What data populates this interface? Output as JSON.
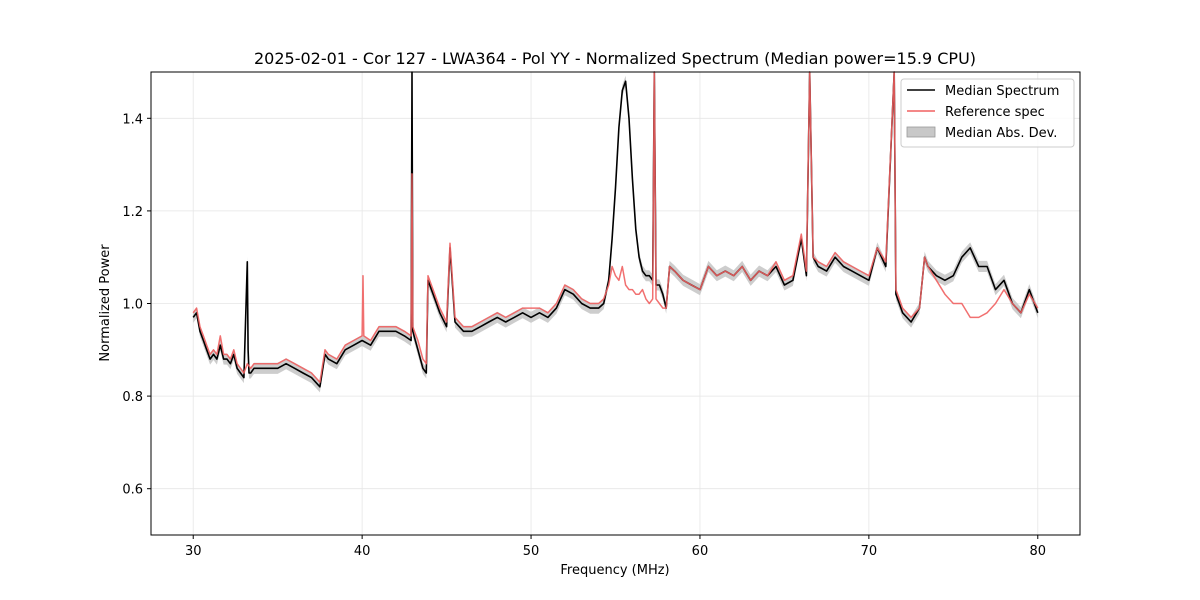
{
  "chart_data": {
    "type": "line",
    "title": "2025-02-01 - Cor 127 - LWA364 - Pol YY - Normalized Spectrum (Median power=15.9 CPU)",
    "xlabel": "Frequency (MHz)",
    "ylabel": "Normalized Power",
    "xlim": [
      27.5,
      82.5
    ],
    "ylim": [
      0.5,
      1.5
    ],
    "xticks": [
      30,
      40,
      50,
      60,
      70,
      80
    ],
    "yticks": [
      0.6,
      0.8,
      1.0,
      1.2,
      1.4
    ],
    "xtick_labels": [
      "30",
      "40",
      "50",
      "60",
      "70",
      "80"
    ],
    "ytick_labels": [
      "0.6",
      "0.8",
      "1.0",
      "1.2",
      "1.4"
    ],
    "grid": true,
    "legend_position": "top-right",
    "legend": [
      {
        "label": "Median Spectrum",
        "kind": "line",
        "color": "#000000"
      },
      {
        "label": "Reference spec",
        "kind": "line",
        "color": "#f06060"
      },
      {
        "label": "Median Abs. Dev.",
        "kind": "patch",
        "color": "#c8c8c8"
      }
    ],
    "series": [
      {
        "name": "Median Spectrum",
        "color": "#000000",
        "x": [
          30.0,
          30.2,
          30.4,
          30.6,
          30.8,
          31.0,
          31.2,
          31.4,
          31.6,
          31.8,
          32.0,
          32.2,
          32.4,
          32.6,
          32.8,
          33.0,
          33.2,
          33.25,
          33.3,
          33.4,
          33.6,
          34.0,
          34.5,
          35.0,
          35.5,
          36.0,
          36.5,
          37.0,
          37.5,
          37.8,
          38.0,
          38.5,
          39.0,
          39.5,
          40.0,
          40.5,
          41.0,
          41.5,
          42.0,
          42.5,
          42.9,
          42.95,
          43.0,
          43.3,
          43.6,
          43.8,
          43.9,
          44.2,
          44.6,
          45.0,
          45.2,
          45.5,
          46.0,
          46.5,
          47.0,
          47.5,
          48.0,
          48.5,
          49.0,
          49.5,
          50.0,
          50.5,
          51.0,
          51.5,
          52.0,
          52.5,
          53.0,
          53.5,
          54.0,
          54.3,
          54.6,
          54.8,
          55.0,
          55.2,
          55.4,
          55.6,
          55.8,
          56.0,
          56.2,
          56.4,
          56.6,
          56.8,
          57.0,
          57.2,
          57.3,
          57.4,
          57.6,
          57.8,
          58.0,
          58.2,
          58.5,
          59.0,
          59.5,
          60.0,
          60.5,
          61.0,
          61.5,
          62.0,
          62.5,
          63.0,
          63.5,
          64.0,
          64.5,
          65.0,
          65.5,
          66.0,
          66.3,
          66.5,
          66.7,
          67.0,
          67.5,
          68.0,
          68.5,
          69.0,
          69.5,
          70.0,
          70.5,
          71.0,
          71.5,
          71.6,
          71.8,
          72.0,
          72.5,
          73.0,
          73.3,
          73.5,
          74.0,
          74.5,
          75.0,
          75.5,
          76.0,
          76.5,
          77.0,
          77.5,
          78.0,
          78.5,
          79.0,
          79.5,
          80.0
        ],
        "y": [
          0.97,
          0.98,
          0.94,
          0.92,
          0.9,
          0.88,
          0.89,
          0.88,
          0.91,
          0.88,
          0.88,
          0.87,
          0.89,
          0.86,
          0.85,
          0.84,
          1.09,
          0.9,
          0.85,
          0.85,
          0.86,
          0.86,
          0.86,
          0.86,
          0.87,
          0.86,
          0.85,
          0.84,
          0.82,
          0.89,
          0.88,
          0.87,
          0.9,
          0.91,
          0.92,
          0.91,
          0.94,
          0.94,
          0.94,
          0.93,
          0.92,
          1.5,
          0.94,
          0.9,
          0.86,
          0.85,
          1.05,
          1.02,
          0.98,
          0.95,
          1.12,
          0.96,
          0.94,
          0.94,
          0.95,
          0.96,
          0.97,
          0.96,
          0.97,
          0.98,
          0.97,
          0.98,
          0.97,
          0.99,
          1.03,
          1.02,
          1.0,
          0.99,
          0.99,
          1.0,
          1.05,
          1.14,
          1.25,
          1.38,
          1.46,
          1.48,
          1.4,
          1.27,
          1.16,
          1.1,
          1.07,
          1.06,
          1.06,
          1.05,
          1.5,
          1.04,
          1.04,
          1.02,
          0.99,
          1.08,
          1.07,
          1.05,
          1.04,
          1.03,
          1.08,
          1.06,
          1.07,
          1.06,
          1.08,
          1.05,
          1.07,
          1.06,
          1.08,
          1.04,
          1.05,
          1.14,
          1.06,
          1.5,
          1.1,
          1.08,
          1.07,
          1.1,
          1.08,
          1.07,
          1.06,
          1.05,
          1.12,
          1.08,
          1.5,
          1.02,
          1.0,
          0.98,
          0.96,
          0.99,
          1.1,
          1.08,
          1.06,
          1.05,
          1.06,
          1.1,
          1.12,
          1.08,
          1.08,
          1.03,
          1.05,
          1.0,
          0.98,
          1.03,
          0.98
        ]
      },
      {
        "name": "Reference spec",
        "color": "#f06060",
        "x": [
          30.0,
          30.2,
          30.4,
          30.6,
          30.8,
          31.0,
          31.2,
          31.4,
          31.6,
          31.8,
          32.0,
          32.2,
          32.4,
          32.6,
          32.8,
          33.0,
          33.2,
          33.4,
          33.6,
          34.0,
          34.5,
          35.0,
          35.5,
          36.0,
          36.5,
          37.0,
          37.5,
          37.8,
          38.0,
          38.5,
          39.0,
          39.5,
          40.0,
          40.05,
          40.1,
          40.5,
          41.0,
          41.5,
          42.0,
          42.5,
          42.9,
          42.95,
          43.0,
          43.3,
          43.6,
          43.8,
          43.9,
          44.2,
          44.6,
          45.0,
          45.2,
          45.5,
          46.0,
          46.5,
          47.0,
          47.5,
          48.0,
          48.5,
          49.0,
          49.5,
          50.0,
          50.5,
          51.0,
          51.5,
          52.0,
          52.5,
          53.0,
          53.5,
          54.0,
          54.3,
          54.6,
          54.8,
          55.0,
          55.2,
          55.4,
          55.6,
          55.8,
          56.0,
          56.2,
          56.4,
          56.6,
          56.8,
          57.0,
          57.2,
          57.3,
          57.4,
          57.6,
          57.8,
          58.0,
          58.2,
          58.5,
          59.0,
          59.5,
          60.0,
          60.5,
          61.0,
          61.5,
          62.0,
          62.5,
          63.0,
          63.5,
          64.0,
          64.5,
          65.0,
          65.5,
          66.0,
          66.3,
          66.5,
          66.7,
          67.0,
          67.5,
          68.0,
          68.5,
          69.0,
          69.5,
          70.0,
          70.5,
          71.0,
          71.5,
          71.6,
          71.8,
          72.0,
          72.5,
          73.0,
          73.3,
          73.5,
          74.0,
          74.5,
          75.0,
          75.5,
          76.0,
          76.5,
          77.0,
          77.5,
          78.0,
          78.5,
          79.0,
          79.5,
          80.0
        ],
        "y": [
          0.98,
          0.99,
          0.95,
          0.93,
          0.91,
          0.89,
          0.9,
          0.89,
          0.93,
          0.89,
          0.89,
          0.88,
          0.9,
          0.87,
          0.86,
          0.85,
          0.87,
          0.86,
          0.87,
          0.87,
          0.87,
          0.87,
          0.88,
          0.87,
          0.86,
          0.85,
          0.83,
          0.9,
          0.89,
          0.88,
          0.91,
          0.92,
          0.93,
          1.06,
          0.93,
          0.92,
          0.95,
          0.95,
          0.95,
          0.94,
          0.93,
          1.28,
          0.95,
          0.92,
          0.88,
          0.87,
          1.06,
          1.03,
          0.99,
          0.96,
          1.13,
          0.97,
          0.95,
          0.95,
          0.96,
          0.97,
          0.98,
          0.97,
          0.98,
          0.99,
          0.99,
          0.99,
          0.98,
          1.0,
          1.04,
          1.03,
          1.01,
          1.0,
          1.0,
          1.01,
          1.04,
          1.08,
          1.06,
          1.05,
          1.08,
          1.04,
          1.03,
          1.03,
          1.02,
          1.02,
          1.03,
          1.01,
          1.0,
          1.01,
          1.5,
          1.01,
          1.0,
          0.99,
          0.99,
          1.08,
          1.07,
          1.05,
          1.04,
          1.03,
          1.08,
          1.06,
          1.07,
          1.06,
          1.08,
          1.05,
          1.07,
          1.06,
          1.09,
          1.05,
          1.06,
          1.15,
          1.07,
          1.5,
          1.1,
          1.09,
          1.08,
          1.11,
          1.09,
          1.08,
          1.07,
          1.06,
          1.12,
          1.09,
          1.5,
          1.03,
          1.01,
          0.99,
          0.97,
          0.99,
          1.1,
          1.08,
          1.05,
          1.02,
          1.0,
          1.0,
          0.97,
          0.97,
          0.98,
          1.0,
          1.03,
          1.0,
          0.98,
          1.02,
          0.99
        ]
      }
    ]
  }
}
